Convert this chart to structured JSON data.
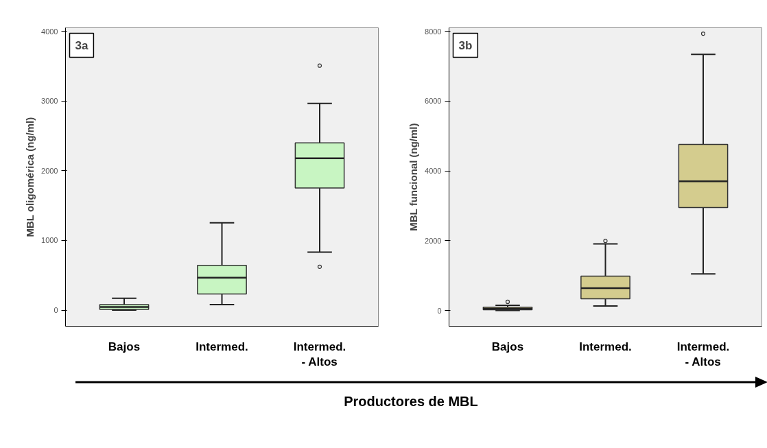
{
  "chart_data": [
    {
      "type": "box",
      "ylabel": "MBL oligomérica (ng/ml)",
      "categories": [
        "Bajos",
        "Intermed.",
        "Intermed.\n- Altos"
      ],
      "color": "#c8f5c2",
      "ylim": [
        -230,
        4050
      ],
      "yticks": [
        0,
        1000,
        2000,
        3000,
        4000
      ],
      "grid": false,
      "annotations": [
        "3a"
      ],
      "boxes": [
        {
          "low": 0,
          "q1": 10,
          "median": 45,
          "q3": 79,
          "high": 171
        },
        {
          "low": 79,
          "q1": 233,
          "median": 466,
          "q3": 644,
          "high": 1253
        },
        {
          "low": 832,
          "q1": 1753,
          "median": 2178,
          "q3": 2400,
          "high": 2966,
          "outliers": [
            3507,
            623
          ]
        }
      ]
    },
    {
      "type": "box",
      "ylabel": "MBL funcional (ng/ml)",
      "categories": [
        "Bajos",
        "Intermed.",
        "Intermed.\n- Altos"
      ],
      "color": "#d4cc8e",
      "ylim": [
        -450,
        8100
      ],
      "yticks": [
        0,
        2000,
        4000,
        6000,
        8000
      ],
      "grid": false,
      "annotations": [
        "3b",
        "Productores de MBL"
      ],
      "boxes": [
        {
          "low": 0,
          "q1": 20,
          "median": 50,
          "q3": 96,
          "high": 150,
          "outliers": [
            250
          ]
        },
        {
          "low": 130,
          "q1": 334,
          "median": 642,
          "q3": 983,
          "high": 1911,
          "outliers": [
            1993
          ]
        },
        {
          "low": 1051,
          "q1": 2949,
          "median": 3700,
          "q3": 4758,
          "high": 7338,
          "outliers": [
            7932
          ]
        }
      ]
    }
  ]
}
